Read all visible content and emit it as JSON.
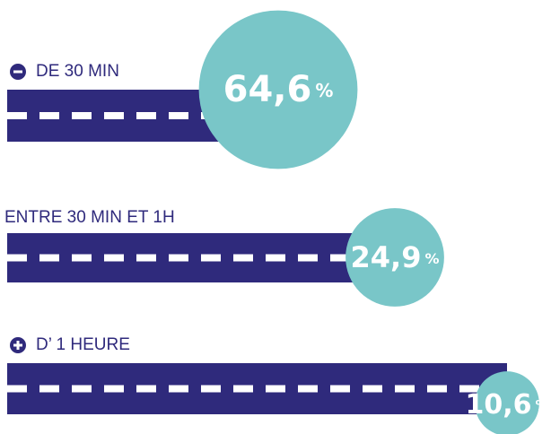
{
  "chart_data": {
    "type": "bubble",
    "categories": [
      "DE 30 MIN",
      "ENTRE 30 MIN ET 1H",
      "D’ 1 HEURE"
    ],
    "values": [
      64.6,
      24.9,
      10.6
    ],
    "value_labels": [
      "64,6",
      "24,9",
      "10,6"
    ],
    "unit": "%",
    "bar_color": "#2f2a7c",
    "color": "#79c6c8"
  }
}
